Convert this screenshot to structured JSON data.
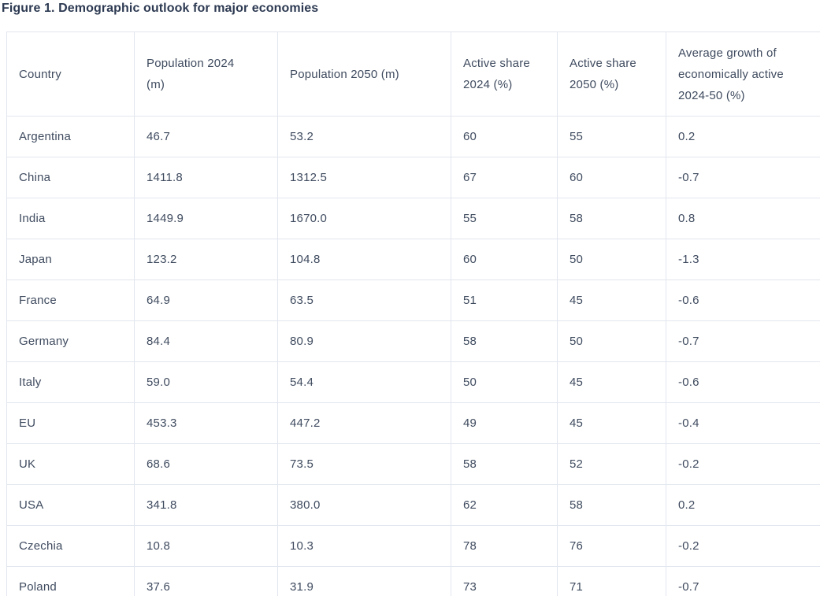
{
  "page": {
    "title": "Figure 1. Demographic outlook for major economies"
  },
  "colors": {
    "title_text": "#2d3a52",
    "cell_text": "#3f4b5f",
    "grid_border": "#e2e6ee",
    "background": "#ffffff"
  },
  "table": {
    "column_labels": [
      "Country",
      "Population 2024\n(m)",
      "Population 2050 (m)",
      "Active share\n2024 (%)",
      "Active share\n2050 (%)",
      "Average growth of\neconomically active\n2024-50 (%)"
    ],
    "rows": [
      [
        "Argentina",
        "46.7",
        "53.2",
        "60",
        "55",
        "0.2"
      ],
      [
        "China",
        "1411.8",
        "1312.5",
        "67",
        "60",
        "-0.7"
      ],
      [
        "India",
        "1449.9",
        "1670.0",
        "55",
        "58",
        "0.8"
      ],
      [
        "Japan",
        "123.2",
        "104.8",
        "60",
        "50",
        "-1.3"
      ],
      [
        "France",
        "64.9",
        "63.5",
        "51",
        "45",
        "-0.6"
      ],
      [
        "Germany",
        "84.4",
        "80.9",
        "58",
        "50",
        "-0.7"
      ],
      [
        "Italy",
        "59.0",
        "54.4",
        "50",
        "45",
        "-0.6"
      ],
      [
        "EU",
        "453.3",
        "447.2",
        "49",
        "45",
        "-0.4"
      ],
      [
        "UK",
        "68.6",
        "73.5",
        "58",
        "52",
        "-0.2"
      ],
      [
        "USA",
        "341.8",
        "380.0",
        "62",
        "58",
        "0.2"
      ],
      [
        "Czechia",
        "10.8",
        "10.3",
        "78",
        "76",
        "-0.2"
      ],
      [
        "Poland",
        "37.6",
        "31.9",
        "73",
        "71",
        "-0.7"
      ]
    ]
  },
  "chart_data": {
    "type": "table",
    "title": "Figure 1. Demographic outlook for major economies",
    "columns": [
      "Country",
      "Population 2024 (m)",
      "Population 2050 (m)",
      "Active share 2024 (%)",
      "Active share 2050 (%)",
      "Average growth of economically active 2024-50 (%)"
    ],
    "rows": [
      {
        "country": "Argentina",
        "population_2024_m": 46.7,
        "population_2050_m": 53.2,
        "active_share_2024_pct": 60,
        "active_share_2050_pct": 55,
        "avg_growth_econ_active_2024_50_pct": 0.2
      },
      {
        "country": "China",
        "population_2024_m": 1411.8,
        "population_2050_m": 1312.5,
        "active_share_2024_pct": 67,
        "active_share_2050_pct": 60,
        "avg_growth_econ_active_2024_50_pct": -0.7
      },
      {
        "country": "India",
        "population_2024_m": 1449.9,
        "population_2050_m": 1670.0,
        "active_share_2024_pct": 55,
        "active_share_2050_pct": 58,
        "avg_growth_econ_active_2024_50_pct": 0.8
      },
      {
        "country": "Japan",
        "population_2024_m": 123.2,
        "population_2050_m": 104.8,
        "active_share_2024_pct": 60,
        "active_share_2050_pct": 50,
        "avg_growth_econ_active_2024_50_pct": -1.3
      },
      {
        "country": "France",
        "population_2024_m": 64.9,
        "population_2050_m": 63.5,
        "active_share_2024_pct": 51,
        "active_share_2050_pct": 45,
        "avg_growth_econ_active_2024_50_pct": -0.6
      },
      {
        "country": "Germany",
        "population_2024_m": 84.4,
        "population_2050_m": 80.9,
        "active_share_2024_pct": 58,
        "active_share_2050_pct": 50,
        "avg_growth_econ_active_2024_50_pct": -0.7
      },
      {
        "country": "Italy",
        "population_2024_m": 59.0,
        "population_2050_m": 54.4,
        "active_share_2024_pct": 50,
        "active_share_2050_pct": 45,
        "avg_growth_econ_active_2024_50_pct": -0.6
      },
      {
        "country": "EU",
        "population_2024_m": 453.3,
        "population_2050_m": 447.2,
        "active_share_2024_pct": 49,
        "active_share_2050_pct": 45,
        "avg_growth_econ_active_2024_50_pct": -0.4
      },
      {
        "country": "UK",
        "population_2024_m": 68.6,
        "population_2050_m": 73.5,
        "active_share_2024_pct": 58,
        "active_share_2050_pct": 52,
        "avg_growth_econ_active_2024_50_pct": -0.2
      },
      {
        "country": "USA",
        "population_2024_m": 341.8,
        "population_2050_m": 380.0,
        "active_share_2024_pct": 62,
        "active_share_2050_pct": 58,
        "avg_growth_econ_active_2024_50_pct": 0.2
      },
      {
        "country": "Czechia",
        "population_2024_m": 10.8,
        "population_2050_m": 10.3,
        "active_share_2024_pct": 78,
        "active_share_2050_pct": 76,
        "avg_growth_econ_active_2024_50_pct": -0.2
      },
      {
        "country": "Poland",
        "population_2024_m": 37.6,
        "population_2050_m": 31.9,
        "active_share_2024_pct": 73,
        "active_share_2050_pct": 71,
        "avg_growth_econ_active_2024_50_pct": -0.7
      }
    ]
  }
}
